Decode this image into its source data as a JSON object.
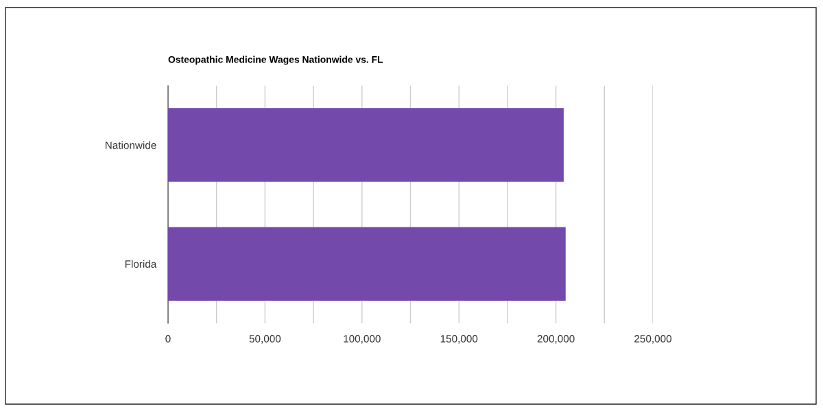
{
  "chart_data": {
    "type": "bar",
    "orientation": "horizontal",
    "title": "Osteopathic Medicine Wages Nationwide vs. FL",
    "categories": [
      "Nationwide",
      "Florida"
    ],
    "values": [
      204000,
      205000
    ],
    "color": "#7449ac",
    "xlim": [
      0,
      250000
    ],
    "xticks": [
      0,
      {
        "value": 25000,
        "label": null
      },
      {
        "value": 50000,
        "label": "50,000"
      },
      {
        "value": 75000,
        "label": null
      },
      {
        "value": 100000,
        "label": "100,000"
      },
      {
        "value": 125000,
        "label": null
      },
      {
        "value": 150000,
        "label": "150,000"
      },
      {
        "value": 175000,
        "label": null
      },
      {
        "value": 200000,
        "label": "200,000"
      },
      {
        "value": 225000,
        "label": null
      },
      {
        "value": 250000,
        "label": "250,000"
      }
    ],
    "grid": "x",
    "legend": false
  }
}
